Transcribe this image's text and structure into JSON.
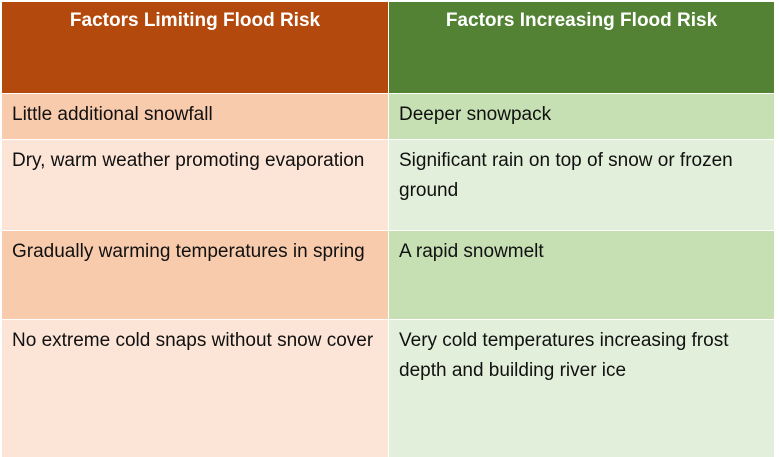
{
  "table": {
    "headers": [
      "Factors Limiting Flood Risk",
      "Factors Increasing Flood Risk"
    ],
    "rows": [
      [
        "Little additional snowfall",
        "Deeper snowpack"
      ],
      [
        "Dry, warm weather promoting evaporation",
        "Significant rain on top of snow or frozen ground"
      ],
      [
        "Gradually warming temperatures in spring",
        "A rapid snowmelt"
      ],
      [
        "No extreme cold snaps without snow cover",
        "Very cold temperatures increasing frost depth and building river ice"
      ]
    ],
    "colors": {
      "limiting_header": "#b4490e",
      "increasing_header": "#548235",
      "limiting_dark": "#f8cbad",
      "limiting_light": "#fce4d6",
      "increasing_dark": "#c6e0b4",
      "increasing_light": "#e2efda"
    }
  }
}
